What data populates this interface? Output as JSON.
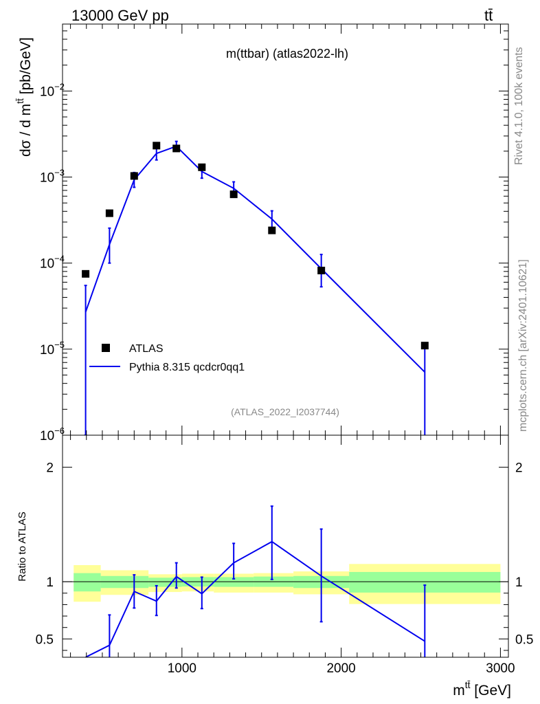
{
  "header": {
    "left": "13000 GeV pp",
    "right": "tt̄"
  },
  "side": {
    "rivet": "Rivet 4.1.0,  100k events",
    "mcplots": "mcplots.cern.ch [arXiv:2401.10621]"
  },
  "colors": {
    "data": "#000000",
    "mc": "#0000ee",
    "band_outer": "#ffff99",
    "band_inner": "#99ff99",
    "watermark": "#888888"
  },
  "chart_data": [
    {
      "type": "scatter",
      "panel": "main",
      "title": "m(ttbar) (atlas2022-lh)",
      "analysis_id": "(ATLAS_2022_I2037744)",
      "ylabel": "dσ / d m^{tt̄} [pb/GeV]",
      "yscale": "log",
      "ylim": [
        1e-06,
        0.06
      ],
      "xlim": [
        250,
        3050
      ],
      "ytick_labels": [
        {
          "value": 0.01,
          "base": "10",
          "exp": "−2"
        },
        {
          "value": 0.001,
          "base": "10",
          "exp": "−3"
        },
        {
          "value": 0.0001,
          "base": "10",
          "exp": "−4"
        },
        {
          "value": 1e-05,
          "base": "10",
          "exp": "−5"
        },
        {
          "value": 1e-06,
          "base": "10",
          "exp": "−6"
        }
      ],
      "legend": [
        {
          "label": "ATLAS",
          "kind": "marker"
        },
        {
          "label": "Pythia 8.315 qcdcr0qq1",
          "kind": "line"
        }
      ],
      "series": [
        {
          "name": "ATLAS",
          "x": [
            395,
            545,
            700,
            840,
            965,
            1125,
            1325,
            1565,
            1875,
            2525
          ],
          "y": [
            7.5e-05,
            0.00038,
            0.00103,
            0.00232,
            0.00215,
            0.0013,
            0.00063,
            0.00024,
            8.2e-05,
            1.1e-05
          ]
        },
        {
          "name": "Pythia 8.315 qcdcr0qq1",
          "x": [
            395,
            545,
            700,
            840,
            965,
            1125,
            1325,
            1565,
            1875,
            2525
          ],
          "y": [
            2.7e-05,
            0.000165,
            0.00093,
            0.00188,
            0.00228,
            0.00116,
            0.00074,
            0.000325,
            8.6e-05,
            5.4e-06
          ],
          "err_low": [
            2.6e-05,
            6.5e-05,
            0.00017,
            0.0003,
            0.00028,
            0.00019,
            0.00013,
            8e-05,
            3.3e-05,
            5.3e-06
          ],
          "err_high": [
            2.8e-05,
            9e-05,
            0.0002,
            0.00032,
            0.00032,
            0.0002,
            0.00014,
            8e-05,
            4e-05,
            5.6e-06
          ]
        }
      ]
    },
    {
      "type": "line",
      "panel": "ratio",
      "ylabel": "Ratio to ATLAS",
      "xlabel": "m^{tt̄} [GeV]",
      "ylim": [
        0.34,
        2.28
      ],
      "xlim": [
        250,
        3050
      ],
      "xticks": [
        1000,
        2000,
        3000
      ],
      "xtick_labels": [
        "1000",
        "2000",
        "3000"
      ],
      "yticks": [
        0.5,
        1,
        2
      ],
      "ytick_labels": [
        "0.5",
        "1",
        "2"
      ],
      "reference": 1,
      "bands": [
        {
          "x0": 320,
          "x1": 490,
          "outer": [
            0.825,
            1.145
          ],
          "inner": [
            0.915,
            1.075
          ]
        },
        {
          "x0": 490,
          "x1": 790,
          "outer": [
            0.885,
            1.1
          ],
          "inner": [
            0.945,
            1.05
          ]
        },
        {
          "x0": 790,
          "x1": 1000,
          "outer": [
            0.91,
            1.065
          ],
          "inner": [
            0.955,
            1.035
          ]
        },
        {
          "x0": 1000,
          "x1": 1200,
          "outer": [
            0.915,
            1.07
          ],
          "inner": [
            0.958,
            1.04
          ]
        },
        {
          "x0": 1200,
          "x1": 1450,
          "outer": [
            0.905,
            1.07
          ],
          "inner": [
            0.955,
            1.04
          ]
        },
        {
          "x0": 1450,
          "x1": 1700,
          "outer": [
            0.905,
            1.075
          ],
          "inner": [
            0.955,
            1.045
          ]
        },
        {
          "x0": 1700,
          "x1": 2050,
          "outer": [
            0.89,
            1.09
          ],
          "inner": [
            0.945,
            1.05
          ]
        },
        {
          "x0": 2050,
          "x1": 3000,
          "outer": [
            0.805,
            1.155
          ],
          "inner": [
            0.905,
            1.085
          ]
        }
      ],
      "series": [
        {
          "name": "Pythia 8.315 qcdcr0qq1",
          "x": [
            395,
            545,
            700,
            840,
            965,
            1125,
            1325,
            1565,
            1875,
            2525
          ],
          "y": [
            0.3,
            0.445,
            0.915,
            0.83,
            1.045,
            0.895,
            1.165,
            1.35,
            1.05,
            0.48
          ],
          "err_low": [
            0.0,
            0.27,
            0.145,
            0.125,
            0.1,
            0.13,
            0.14,
            0.33,
            0.4,
            0.48
          ],
          "err_high": [
            0.0,
            0.265,
            0.145,
            0.135,
            0.12,
            0.145,
            0.17,
            0.31,
            0.41,
            0.49
          ]
        }
      ]
    }
  ]
}
